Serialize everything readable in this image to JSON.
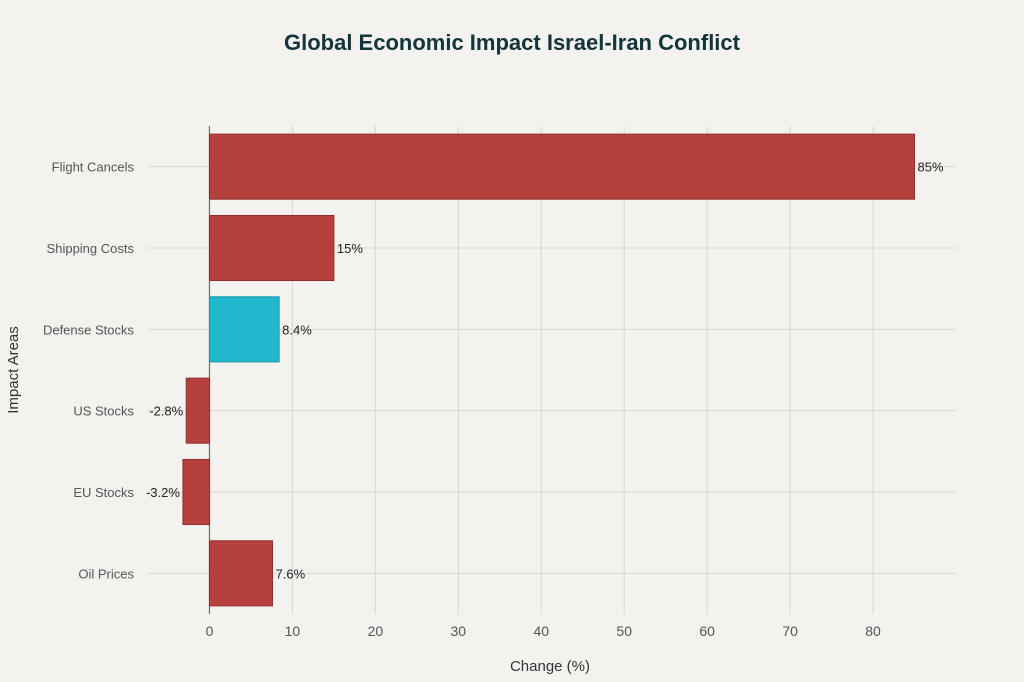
{
  "chart_data": {
    "type": "bar",
    "orientation": "horizontal",
    "title": "Global Economic Impact Israel-Iran Conflict",
    "xlabel": "Change (%)",
    "ylabel": "Impact Areas",
    "categories": [
      "Flight Cancels",
      "Shipping Costs",
      "Defense Stocks",
      "US Stocks",
      "EU Stocks",
      "Oil Prices"
    ],
    "values": [
      85,
      15,
      8.4,
      -2.8,
      -3.2,
      7.6
    ],
    "value_labels": [
      "85%",
      "15%",
      "8.4%",
      "-2.8%",
      "-3.2%",
      "7.6%"
    ],
    "bar_colors": [
      "#b5403e",
      "#b5403e",
      "#21b8cd",
      "#b5403e",
      "#b5403e",
      "#b5403e"
    ],
    "xlim": [
      -5,
      90
    ],
    "xticks": [
      0,
      10,
      20,
      30,
      40,
      50,
      60,
      70,
      80
    ],
    "grid": true,
    "legend": "none"
  }
}
